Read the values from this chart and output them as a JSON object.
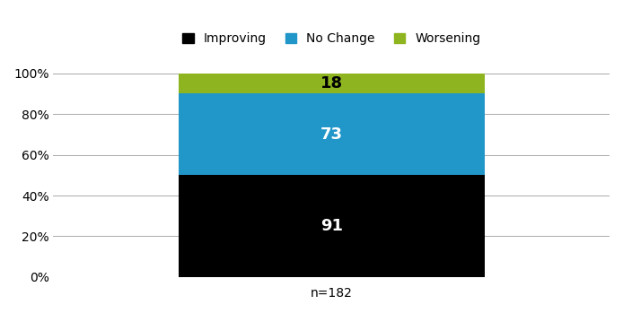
{
  "categories": [
    ""
  ],
  "improving": [
    91
  ],
  "no_change": [
    73
  ],
  "worsening": [
    18
  ],
  "total": 182,
  "improving_pct": 50.0,
  "no_change_pct": 40.1,
  "worsening_pct": 9.9,
  "colors": {
    "improving": "#000000",
    "no_change": "#2196c8",
    "worsening": "#8eb520"
  },
  "labels": {
    "improving": "Improving",
    "no_change": "No Change",
    "worsening": "Worsening"
  },
  "label_colors": {
    "improving": "#ffffff",
    "no_change": "#ffffff",
    "worsening": "#000000"
  },
  "yticks": [
    0,
    20,
    40,
    60,
    80,
    100
  ],
  "yticklabels": [
    "0%",
    "20%",
    "40%",
    "60%",
    "80%",
    "100%"
  ],
  "ylim": [
    0,
    107
  ],
  "xlabel": "n=182",
  "legend_fontsize": 10,
  "label_fontsize": 13,
  "tick_fontsize": 10,
  "xlabel_fontsize": 10,
  "background_color": "#ffffff",
  "grid_color": "#aaaaaa",
  "bar_width": 0.55
}
